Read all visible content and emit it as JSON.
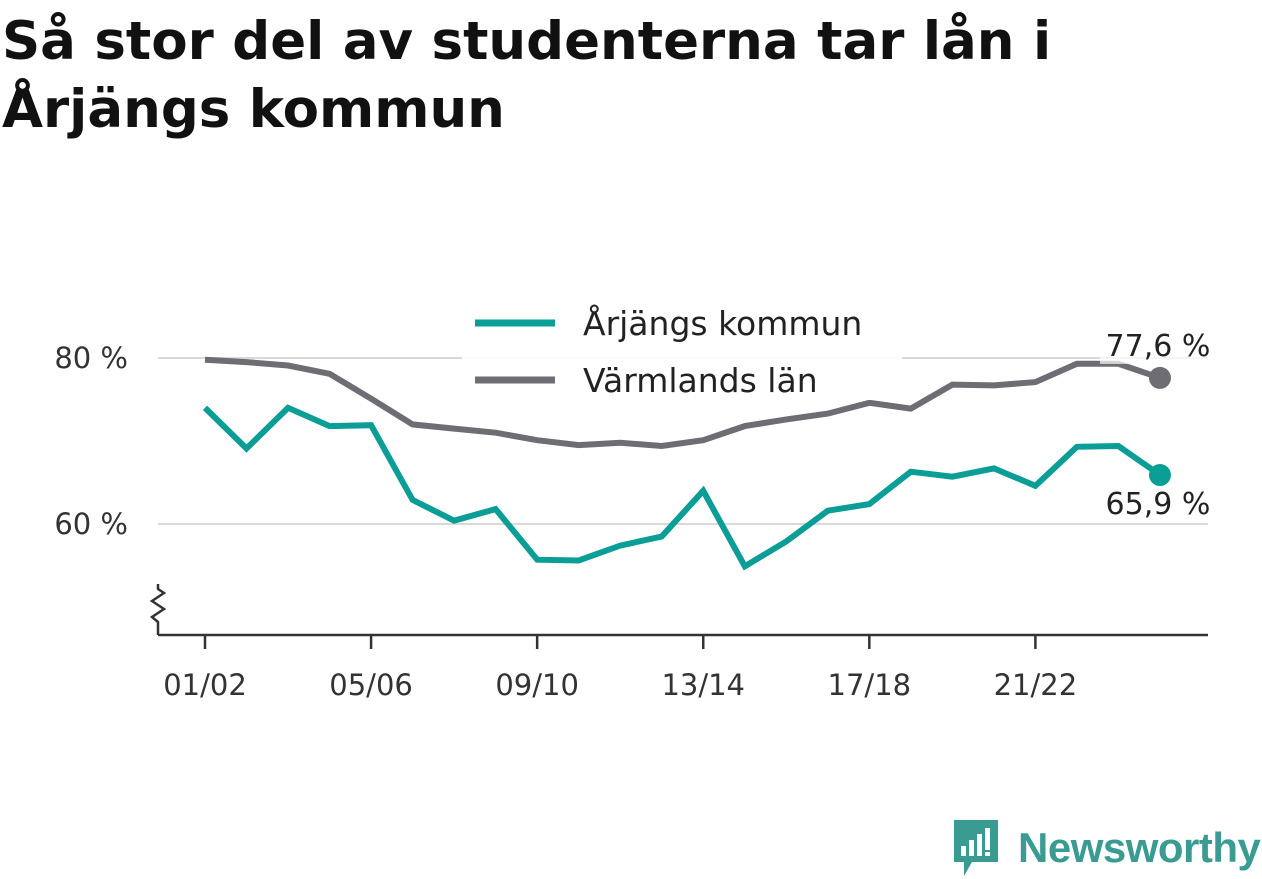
{
  "title": "Så stor del av studenterna tar lån i Årjängs kommun",
  "brand": {
    "name": "Newsworthy",
    "color": "#3a9b93",
    "icon": "newsworthy-logo-icon"
  },
  "colors": {
    "arjang": "#0a9e96",
    "varmland": "#6e6d73",
    "grid": "#d9d9d9",
    "axis": "#333333"
  },
  "chart_data": {
    "type": "line",
    "x": [
      "01/02",
      "02/03",
      "03/04",
      "04/05",
      "05/06",
      "06/07",
      "07/08",
      "08/09",
      "09/10",
      "10/11",
      "11/12",
      "12/13",
      "13/14",
      "14/15",
      "15/16",
      "16/17",
      "17/18",
      "18/19",
      "19/20",
      "20/21",
      "21/22",
      "22/23",
      "23/24",
      "24/25"
    ],
    "x_ticks": [
      "01/02",
      "05/06",
      "09/10",
      "13/14",
      "17/18",
      "21/22"
    ],
    "y_ticks": [
      {
        "value": 60,
        "label": "60 %"
      },
      {
        "value": 80,
        "label": "80 %"
      }
    ],
    "ylim": [
      47,
      95
    ],
    "y_axis_break": true,
    "grid": true,
    "legend_position": "top-center",
    "series": [
      {
        "name": "Årjängs kommun",
        "color": "#0a9e96",
        "values": [
          74.0,
          69.1,
          74.0,
          71.8,
          71.9,
          62.9,
          60.4,
          61.8,
          55.7,
          55.6,
          57.4,
          58.5,
          64.0,
          54.9,
          57.9,
          61.6,
          62.4,
          66.3,
          65.7,
          66.7,
          64.6,
          69.3,
          69.4,
          65.9
        ],
        "end_label": "65,9 %"
      },
      {
        "name": "Värmlands län",
        "color": "#6e6d73",
        "values": [
          79.8,
          79.5,
          79.1,
          78.1,
          75.1,
          72.0,
          71.5,
          71.0,
          70.1,
          69.5,
          69.8,
          69.4,
          70.1,
          71.8,
          72.6,
          73.3,
          74.6,
          73.9,
          76.8,
          76.7,
          77.1,
          79.3,
          79.3,
          77.6
        ],
        "end_label": "77,6 %"
      }
    ]
  }
}
